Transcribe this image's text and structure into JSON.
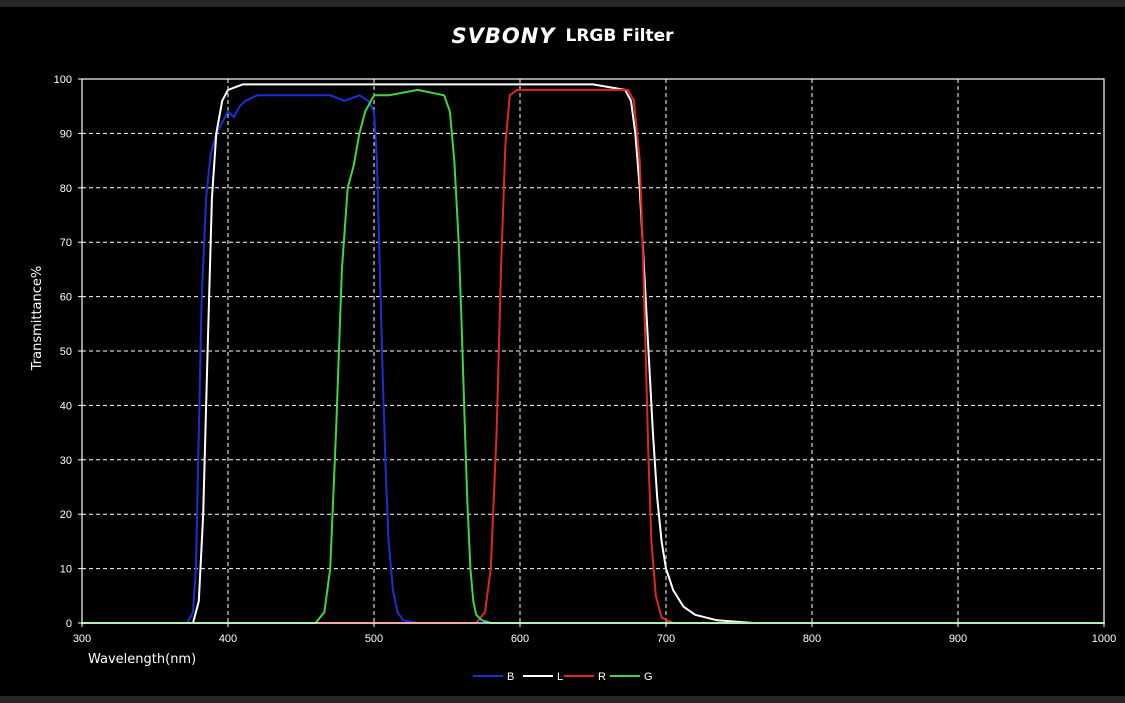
{
  "header": {
    "brand": "SVBONY",
    "title": "LRGB Filter"
  },
  "chart_data": {
    "type": "line",
    "xlabel": "Wavelength(nm)",
    "ylabel": "Transmittance%",
    "xlim": [
      300,
      1000
    ],
    "ylim": [
      0,
      100
    ],
    "xticks": [
      300,
      400,
      500,
      600,
      700,
      800,
      900,
      1000
    ],
    "yticks": [
      0,
      10,
      20,
      30,
      40,
      50,
      60,
      70,
      80,
      90,
      100
    ],
    "grid": true,
    "legend": "bottom",
    "series": [
      {
        "name": "B",
        "color": "#1a2fd6",
        "x": [
          300,
          372,
          376,
          378,
          380,
          382,
          385,
          388,
          392,
          396,
          400,
          404,
          408,
          412,
          420,
          430,
          440,
          450,
          460,
          470,
          480,
          490,
          496,
          500,
          502,
          504,
          506,
          508,
          510,
          513,
          516,
          520,
          530,
          1000
        ],
        "y": [
          0,
          0,
          2,
          10,
          35,
          60,
          78,
          86,
          90,
          92,
          94,
          93,
          95,
          96,
          97,
          97,
          97,
          97,
          97,
          97,
          96,
          97,
          96,
          94,
          85,
          65,
          45,
          28,
          15,
          6,
          2,
          0.5,
          0,
          0
        ]
      },
      {
        "name": "L",
        "color": "#ffffff",
        "x": [
          300,
          376,
          380,
          383,
          386,
          389,
          392,
          396,
          400,
          410,
          450,
          500,
          550,
          600,
          650,
          672,
          676,
          679,
          682,
          685,
          688,
          691,
          694,
          697,
          700,
          705,
          712,
          720,
          735,
          760,
          1000
        ],
        "y": [
          0,
          0,
          4,
          20,
          50,
          78,
          90,
          96,
          98,
          99,
          99,
          99,
          99,
          99,
          99,
          98,
          96,
          90,
          80,
          65,
          50,
          35,
          23,
          15,
          10,
          6,
          3,
          1.5,
          0.5,
          0,
          0
        ]
      },
      {
        "name": "R",
        "color": "#e0281e",
        "x": [
          300,
          570,
          576,
          580,
          584,
          587,
          590,
          593,
          598,
          610,
          640,
          670,
          674,
          678,
          682,
          684,
          686,
          688,
          690,
          693,
          697,
          705,
          1000
        ],
        "y": [
          0,
          0,
          2,
          10,
          35,
          65,
          88,
          97,
          98,
          98,
          98,
          98,
          98,
          96,
          85,
          70,
          50,
          30,
          15,
          5,
          1,
          0,
          0
        ]
      },
      {
        "name": "G",
        "color": "#3fd83a",
        "x": [
          300,
          460,
          466,
          470,
          474,
          478,
          482,
          486,
          490,
          494,
          500,
          510,
          530,
          548,
          552,
          555,
          558,
          560,
          562,
          564,
          566,
          568,
          570,
          574,
          580,
          1000
        ],
        "y": [
          0,
          0,
          2,
          10,
          35,
          65,
          80,
          84,
          90,
          94,
          97,
          97,
          98,
          97,
          94,
          85,
          70,
          55,
          38,
          22,
          10,
          4,
          1.5,
          0.5,
          0,
          0
        ]
      }
    ]
  }
}
